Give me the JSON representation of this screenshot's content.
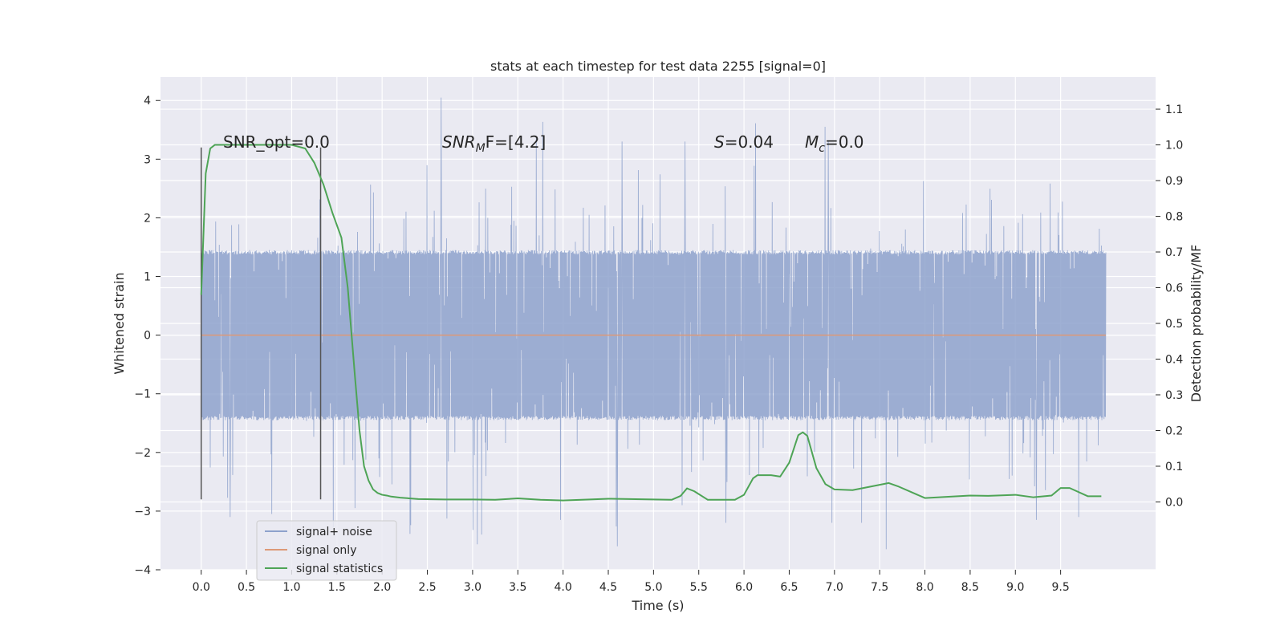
{
  "chart_data": {
    "type": "line",
    "title": "stats at each timestep for test data 2255 [signal=0]",
    "xlabel": "Time (s)",
    "ylabel_left": "Whitened strain",
    "ylabel_right": "Detection probability/MF",
    "xlim": [
      -0.45,
      10.55
    ],
    "ylim_left": [
      -4.0,
      4.4
    ],
    "ylim_right": [
      -0.19,
      1.19
    ],
    "x_ticks": [
      "0.0",
      "0.5",
      "1.0",
      "1.5",
      "2.0",
      "2.5",
      "3.0",
      "3.5",
      "4.0",
      "4.5",
      "5.0",
      "5.5",
      "6.0",
      "6.5",
      "7.0",
      "7.5",
      "8.0",
      "8.5",
      "9.0",
      "9.5"
    ],
    "y_left_ticks": [
      "−4",
      "−3",
      "−2",
      "−1",
      "0",
      "1",
      "2",
      "3",
      "4"
    ],
    "y_right_ticks": [
      "0.0",
      "0.1",
      "0.2",
      "0.3",
      "0.4",
      "0.5",
      "0.6",
      "0.7",
      "0.8",
      "0.9",
      "1.0",
      "1.1"
    ],
    "grid": true,
    "legend_position": "lower-left",
    "annotations": {
      "snr_opt": "SNR_opt=0.0",
      "snr_mf_main": "SNR",
      "snr_mf_sub": "M",
      "snr_mf_rest": "F=[4.2]",
      "s_label": "S",
      "s_value": "=0.04",
      "mc_main": "M",
      "mc_sub": "c",
      "mc_value": "=0.0"
    },
    "markers": [
      {
        "x": 0.0,
        "y_from": -2.8,
        "y_to": 3.2
      },
      {
        "x": 1.32,
        "y_from": -2.8,
        "y_to": 3.2
      }
    ],
    "series": [
      {
        "name": "signal+ noise",
        "color": "#8ea2cc",
        "axis": "left",
        "x_range": [
          0.0,
          10.0
        ],
        "sample_step": 0.004,
        "band_typical": [
          -1.45,
          1.45
        ],
        "spikes": [
          {
            "x": 2.65,
            "y": 4.05
          },
          {
            "x": 4.6,
            "y": -3.6
          },
          {
            "x": 3.1,
            "y": -3.4
          },
          {
            "x": 7.57,
            "y": -3.65
          },
          {
            "x": 0.32,
            "y": -3.1
          },
          {
            "x": 4.65,
            "y": 3.3
          },
          {
            "x": 5.35,
            "y": 3.3
          },
          {
            "x": 6.93,
            "y": 3.3
          },
          {
            "x": 7.3,
            "y": -3.2
          },
          {
            "x": 9.23,
            "y": -3.15
          },
          {
            "x": 9.7,
            "y": -3.1
          },
          {
            "x": 0.78,
            "y": -3.05
          },
          {
            "x": 3.97,
            "y": -3.15
          },
          {
            "x": 5.8,
            "y": -3.2
          },
          {
            "x": 6.97,
            "y": -3.2
          }
        ]
      },
      {
        "name": "signal only",
        "color": "#dd9977",
        "axis": "left",
        "x": [
          0.0,
          10.0
        ],
        "y": [
          0.0,
          0.0
        ]
      },
      {
        "name": "signal statistics",
        "color": "#4ea456",
        "axis": "right",
        "x": [
          0.0,
          0.05,
          0.1,
          0.15,
          0.25,
          0.5,
          1.0,
          1.15,
          1.25,
          1.35,
          1.45,
          1.55,
          1.62,
          1.7,
          1.75,
          1.8,
          1.85,
          1.9,
          1.95,
          2.0,
          2.05,
          2.1,
          2.2,
          2.4,
          2.7,
          3.0,
          3.25,
          3.5,
          3.75,
          4.0,
          4.5,
          5.0,
          5.2,
          5.3,
          5.37,
          5.45,
          5.6,
          5.9,
          6.0,
          6.1,
          6.15,
          6.3,
          6.4,
          6.5,
          6.6,
          6.65,
          6.7,
          6.8,
          6.9,
          7.0,
          7.2,
          7.5,
          7.6,
          7.7,
          8.0,
          8.5,
          8.7,
          9.0,
          9.2,
          9.4,
          9.5,
          9.6,
          9.8,
          9.95
        ],
        "y": [
          0.58,
          0.92,
          0.99,
          1.0,
          1.0,
          1.0,
          1.0,
          0.99,
          0.95,
          0.89,
          0.81,
          0.74,
          0.6,
          0.35,
          0.2,
          0.1,
          0.06,
          0.035,
          0.025,
          0.02,
          0.018,
          0.015,
          0.012,
          0.008,
          0.007,
          0.007,
          0.006,
          0.01,
          0.006,
          0.004,
          0.009,
          0.007,
          0.006,
          0.017,
          0.038,
          0.03,
          0.006,
          0.006,
          0.02,
          0.066,
          0.075,
          0.075,
          0.071,
          0.11,
          0.187,
          0.195,
          0.185,
          0.095,
          0.05,
          0.035,
          0.033,
          0.048,
          0.053,
          0.044,
          0.011,
          0.018,
          0.017,
          0.02,
          0.013,
          0.018,
          0.039,
          0.039,
          0.016,
          0.016
        ]
      }
    ]
  }
}
